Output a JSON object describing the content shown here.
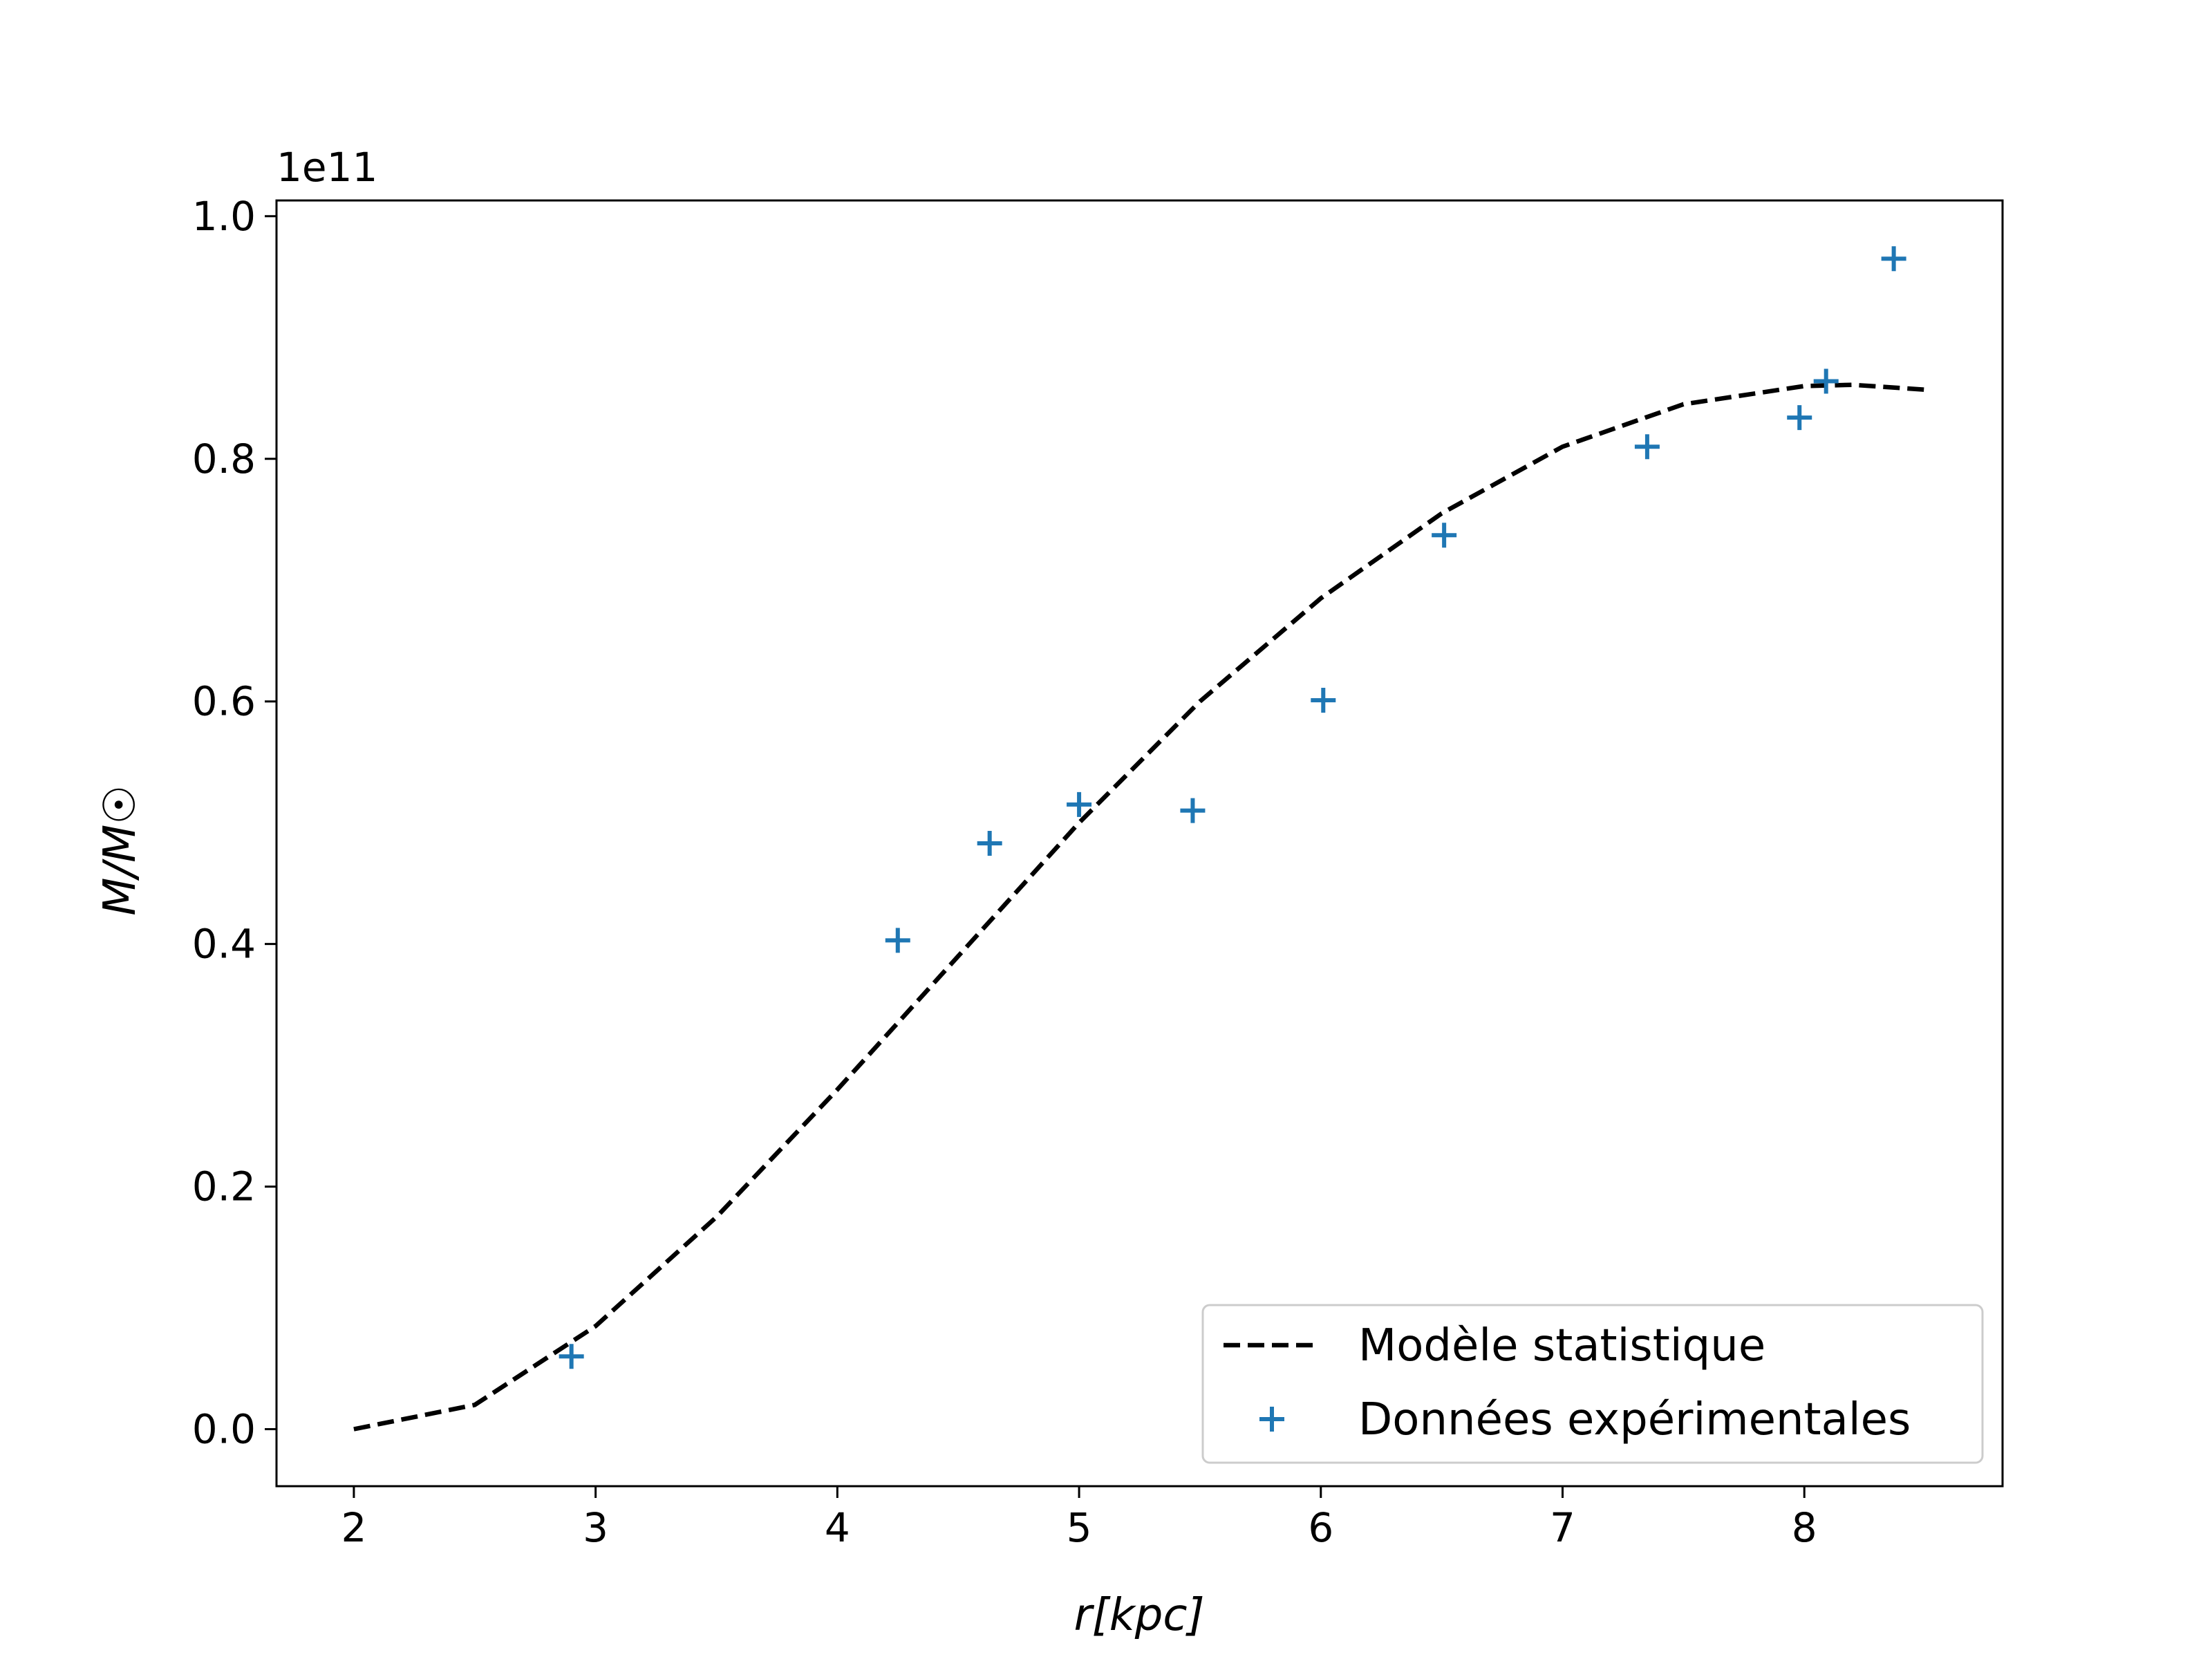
{
  "chart_data": {
    "type": "scatter",
    "title": "",
    "xlabel": "r[kpc]",
    "ylabel": "M/M☉",
    "y_offset_label": "1e11",
    "xlim": [
      1.68,
      8.82
    ],
    "ylim": [
      -0.047,
      1.013
    ],
    "x_ticks": [
      {
        "value": 2,
        "label": "2"
      },
      {
        "value": 3,
        "label": "3"
      },
      {
        "value": 4,
        "label": "4"
      },
      {
        "value": 5,
        "label": "5"
      },
      {
        "value": 6,
        "label": "6"
      },
      {
        "value": 7,
        "label": "7"
      },
      {
        "value": 8,
        "label": "8"
      }
    ],
    "y_ticks": [
      {
        "value": 0.0,
        "label": "0.0"
      },
      {
        "value": 0.2,
        "label": "0.2"
      },
      {
        "value": 0.4,
        "label": "0.4"
      },
      {
        "value": 0.6,
        "label": "0.6"
      },
      {
        "value": 0.8,
        "label": "0.8"
      },
      {
        "value": 1.0,
        "label": "1.0"
      }
    ],
    "grid": false,
    "legend_position": "bottom-right",
    "series": [
      {
        "name": "Modèle statistique",
        "kind": "line",
        "style": "dashed",
        "color": "#000000",
        "x": [
          2.0,
          2.5,
          3.0,
          3.5,
          4.0,
          4.5,
          5.0,
          5.5,
          6.0,
          6.5,
          7.0,
          7.5,
          8.0,
          8.2,
          8.5
        ],
        "y": [
          0.0,
          0.02,
          0.085,
          0.175,
          0.28,
          0.39,
          0.5,
          0.6,
          0.685,
          0.755,
          0.81,
          0.845,
          0.86,
          0.861,
          0.857
        ]
      },
      {
        "name": "Données expérimentales",
        "kind": "scatter",
        "marker": "plus",
        "color": "#1f77b4",
        "x": [
          2.9,
          4.25,
          4.63,
          5.0,
          5.47,
          6.01,
          6.51,
          7.35,
          7.98,
          8.09,
          8.37
        ],
        "y": [
          0.06,
          0.403,
          0.483,
          0.515,
          0.51,
          0.601,
          0.737,
          0.81,
          0.834,
          0.864,
          0.965
        ]
      }
    ]
  }
}
